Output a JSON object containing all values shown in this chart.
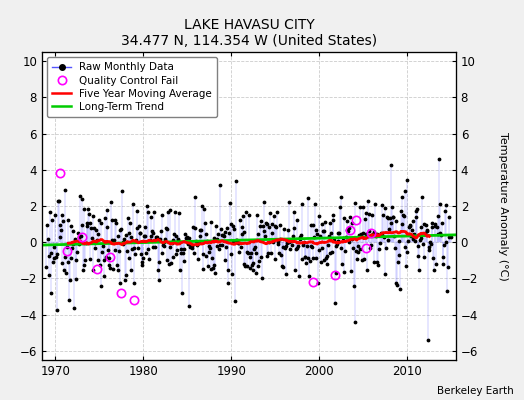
{
  "title": "LAKE HAVASU CITY",
  "subtitle": "34.477 N, 114.354 W (United States)",
  "credit": "Berkeley Earth",
  "ylabel": "Temperature Anomaly (°C)",
  "xlim": [
    1968.5,
    2015.5
  ],
  "ylim": [
    -6.5,
    10.5
  ],
  "yticks": [
    -6,
    -4,
    -2,
    0,
    2,
    4,
    6,
    8,
    10
  ],
  "xticks": [
    1970,
    1980,
    1990,
    2000,
    2010
  ],
  "plot_bg_color": "#ffffff",
  "fig_bg_color": "#f0f0f0",
  "grid_color": "#cccccc",
  "raw_line_color": "#5555ff",
  "raw_marker_color": "#000000",
  "qc_fail_color": "#ff00ff",
  "moving_avg_color": "#ff0000",
  "trend_color": "#00cc00",
  "start_year": 1969,
  "end_year": 2014,
  "trend_slope": 0.012,
  "trend_intercept": -0.15,
  "noise_std": 1.1,
  "qc_fail_times": [
    1970.5,
    1971.4,
    1973.1,
    1974.8,
    1976.2,
    1977.5,
    1978.9,
    1999.3,
    2001.8,
    2003.5,
    2004.2,
    2005.3,
    2005.9
  ],
  "qc_fail_vals": [
    3.8,
    -0.5,
    0.3,
    -1.5,
    -0.8,
    -2.8,
    -3.2,
    -2.2,
    -1.8,
    0.7,
    1.2,
    -0.3,
    0.5
  ]
}
